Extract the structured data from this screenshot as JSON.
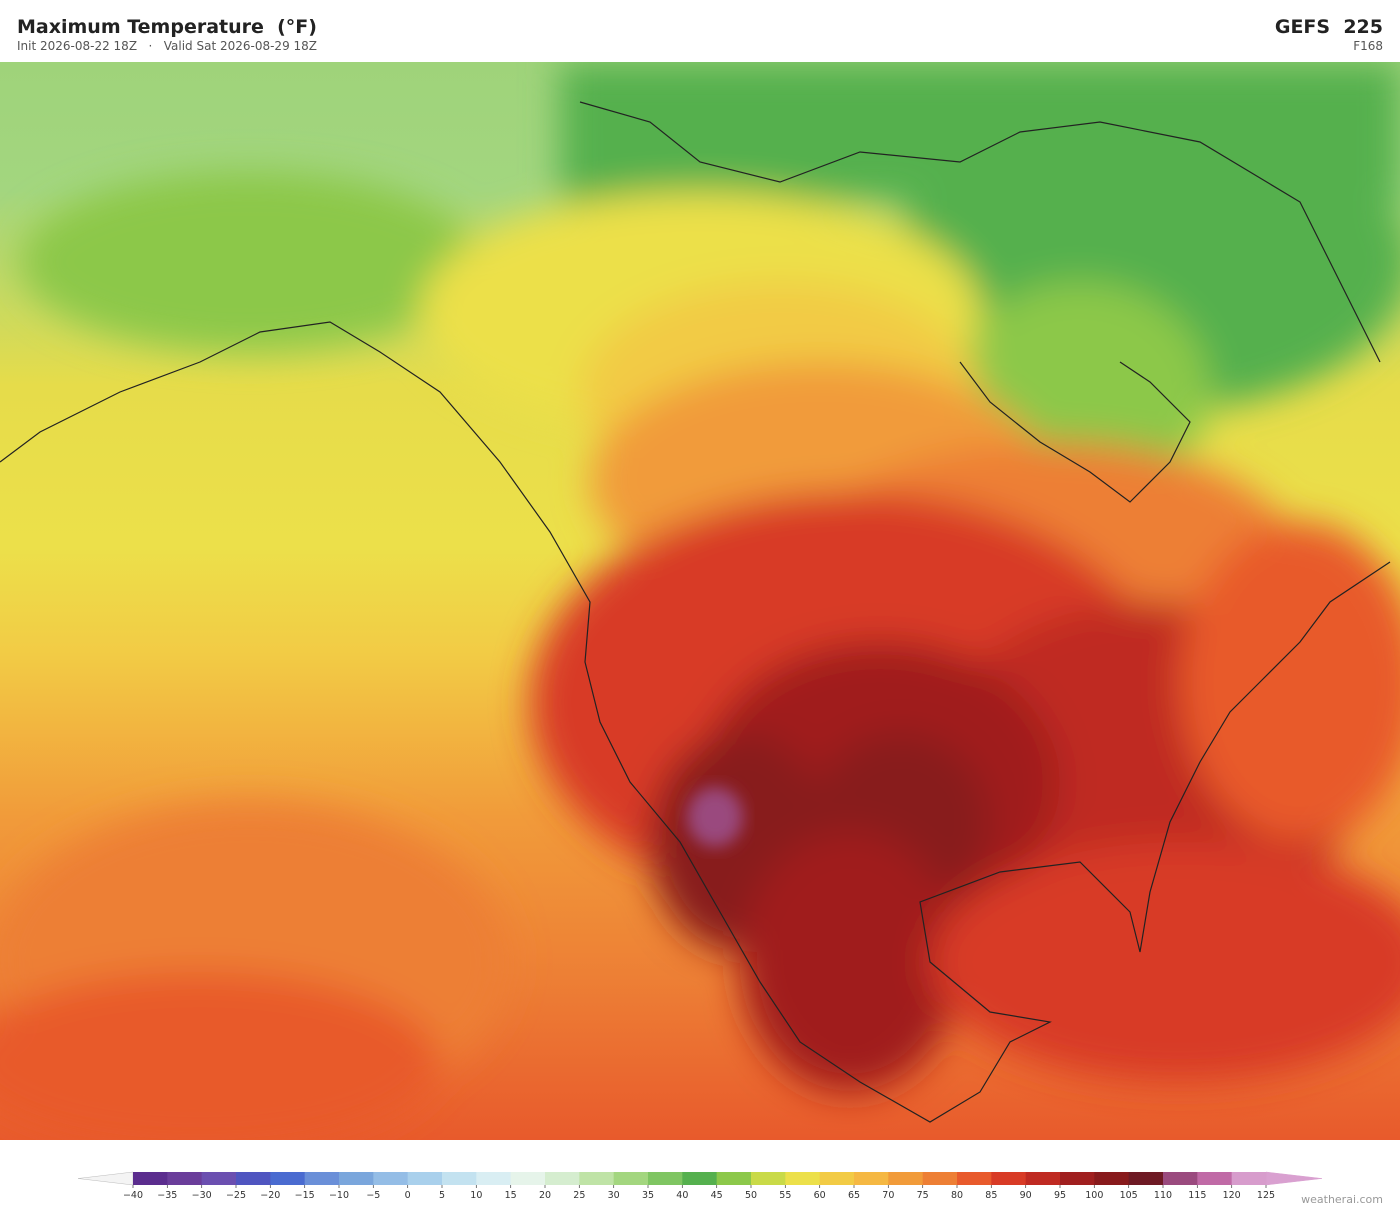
{
  "header": {
    "title": "Maximum Temperature  (°F)",
    "subtitle": "Init 2026-08-22 18Z   ·   Valid Sat 2026-08-29 18Z",
    "model": "GEFS  225",
    "forecast_hour": "F168"
  },
  "colorbar": {
    "ticks": [
      {
        "value": -40,
        "label": "−40"
      },
      {
        "value": -35,
        "label": "−35"
      },
      {
        "value": -30,
        "label": "−30"
      },
      {
        "value": -25,
        "label": "−25"
      },
      {
        "value": -20,
        "label": "−20"
      },
      {
        "value": -15,
        "label": "−15"
      },
      {
        "value": -10,
        "label": "−10"
      },
      {
        "value": -5,
        "label": "−5"
      },
      0,
      5,
      10,
      15,
      20,
      25,
      30,
      35,
      40,
      45,
      50,
      55,
      60,
      65,
      70,
      75,
      80,
      85,
      90,
      95,
      100,
      105,
      110,
      115,
      120,
      125
    ],
    "colors": [
      "#5b2d8e",
      "#6a3d9a",
      "#6b4fb0",
      "#4f55c0",
      "#4a6bd0",
      "#6a8fd8",
      "#7aa6dc",
      "#94bde6",
      "#a9d0ec",
      "#c3e2f0",
      "#d9eef3",
      "#e6f4ea",
      "#d5edcf",
      "#bfe3a6",
      "#a3d67f",
      "#7fc562",
      "#55b04e",
      "#8cc84a",
      "#c9da48",
      "#ece04a",
      "#f2cb45",
      "#f5b843",
      "#f19b3a",
      "#ed7f35",
      "#e85a2c",
      "#d83b26",
      "#bf2a22",
      "#a01f1f",
      "#881a1c",
      "#6e1a24",
      "#9a4a7e",
      "#c06aa6",
      "#d79ccc"
    ],
    "under": "#f4f4f4",
    "over": "#d9a0d0"
  },
  "watermark": "weatherai.com"
}
